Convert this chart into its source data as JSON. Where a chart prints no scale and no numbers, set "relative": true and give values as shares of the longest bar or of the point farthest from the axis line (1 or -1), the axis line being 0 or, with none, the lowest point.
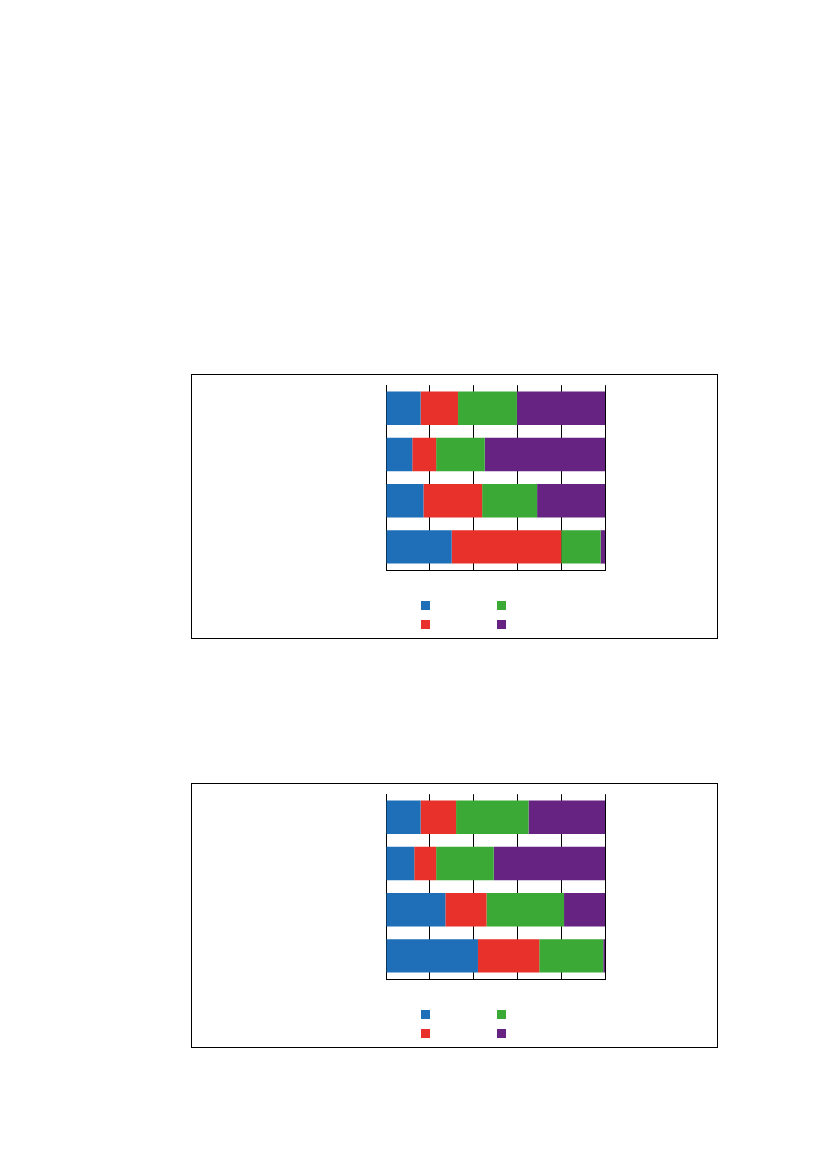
{
  "chart_data": [
    {
      "type": "bar",
      "orientation": "horizontal",
      "stacked": true,
      "relative": true,
      "grid": "x",
      "categories": [
        null,
        null,
        null,
        null
      ],
      "series": [
        {
          "color": "#1f6fb8",
          "values": [
            0.158,
            0.12,
            0.171,
            0.3
          ]
        },
        {
          "color": "#e8312a",
          "values": [
            0.171,
            0.109,
            0.268,
            0.5
          ]
        },
        {
          "color": "#3aa935",
          "values": [
            0.269,
            0.222,
            0.251,
            0.18
          ]
        },
        {
          "color": "#662382",
          "values": [
            0.402,
            0.549,
            0.31,
            0.02
          ]
        }
      ]
    },
    {
      "type": "bar",
      "orientation": "horizontal",
      "stacked": true,
      "relative": true,
      "grid": "x",
      "categories": [
        null,
        null,
        null,
        null
      ],
      "series": [
        {
          "color": "#1f6fb8",
          "values": [
            0.158,
            0.129,
            0.271,
            0.42
          ]
        },
        {
          "color": "#e8312a",
          "values": [
            0.162,
            0.1,
            0.188,
            0.28
          ]
        },
        {
          "color": "#3aa935",
          "values": [
            0.331,
            0.263,
            0.354,
            0.292
          ]
        },
        {
          "color": "#662382",
          "values": [
            0.349,
            0.508,
            0.187,
            0.008
          ]
        }
      ]
    }
  ]
}
